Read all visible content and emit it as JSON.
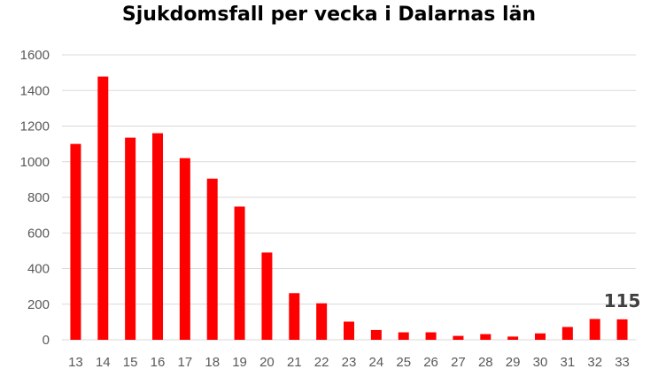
{
  "chart_data": {
    "type": "bar",
    "title": "Sjukdomsfall per vecka i Dalarnas län",
    "xlabel": "",
    "ylabel": "",
    "categories": [
      "13",
      "14",
      "15",
      "16",
      "17",
      "18",
      "19",
      "20",
      "21",
      "22",
      "23",
      "24",
      "25",
      "26",
      "27",
      "28",
      "29",
      "30",
      "31",
      "32",
      "33"
    ],
    "values": [
      1100,
      1478,
      1135,
      1160,
      1020,
      905,
      748,
      490,
      262,
      205,
      102,
      55,
      42,
      42,
      22,
      32,
      18,
      36,
      72,
      117,
      115
    ],
    "ylim": [
      0,
      1600
    ],
    "yticks": [
      "0",
      "200",
      "400",
      "600",
      "800",
      "1000",
      "1200",
      "1400",
      "1600"
    ],
    "grid": true,
    "legend": "none",
    "bar_color": "#ff0000",
    "annotation": {
      "category": "33",
      "text": "115"
    }
  }
}
